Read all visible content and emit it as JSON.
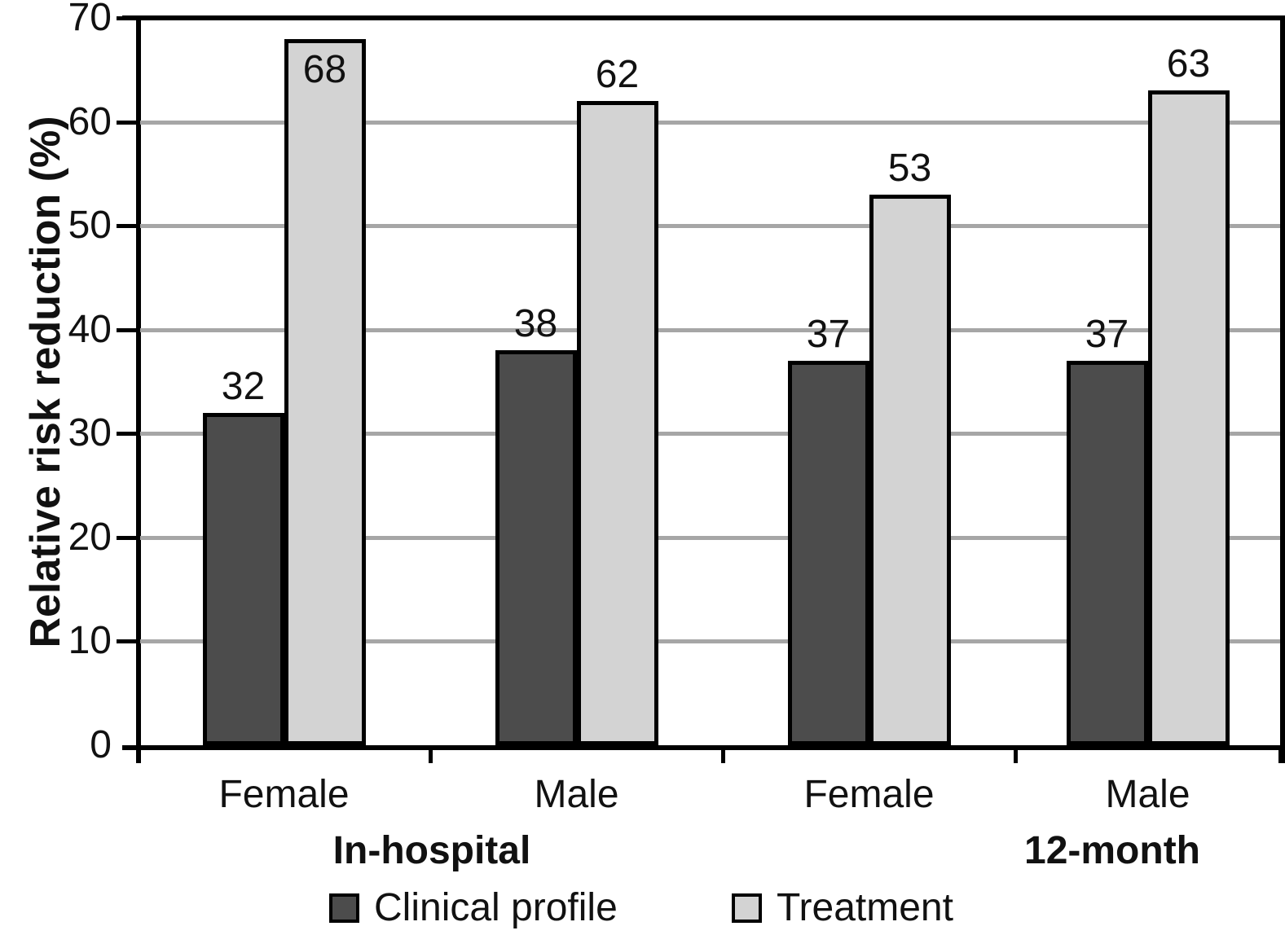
{
  "chart_data": {
    "type": "bar",
    "title": "",
    "ylabel": "Relative risk reduction (%)",
    "xlabel": "",
    "ylim": [
      0,
      70
    ],
    "yticks": [
      0,
      10,
      20,
      30,
      40,
      50,
      60,
      70
    ],
    "grid": true,
    "legend_position": "bottom",
    "categories": [
      "Female",
      "Male",
      "Female",
      "Male"
    ],
    "groups": [
      {
        "label": "In-hospital",
        "categories": [
          "Female",
          "Male"
        ]
      },
      {
        "label": "12-month",
        "categories": [
          "Female",
          "Male"
        ]
      }
    ],
    "series": [
      {
        "name": "Clinical profile",
        "color": "#4c4c4c",
        "values": [
          32,
          38,
          37,
          37
        ]
      },
      {
        "name": "Treatment",
        "color": "#d3d3d3",
        "values": [
          68,
          62,
          53,
          63
        ]
      }
    ],
    "colors": {
      "axis": "#000000",
      "gridline": "#a6a6a6",
      "text": "#111111"
    }
  }
}
